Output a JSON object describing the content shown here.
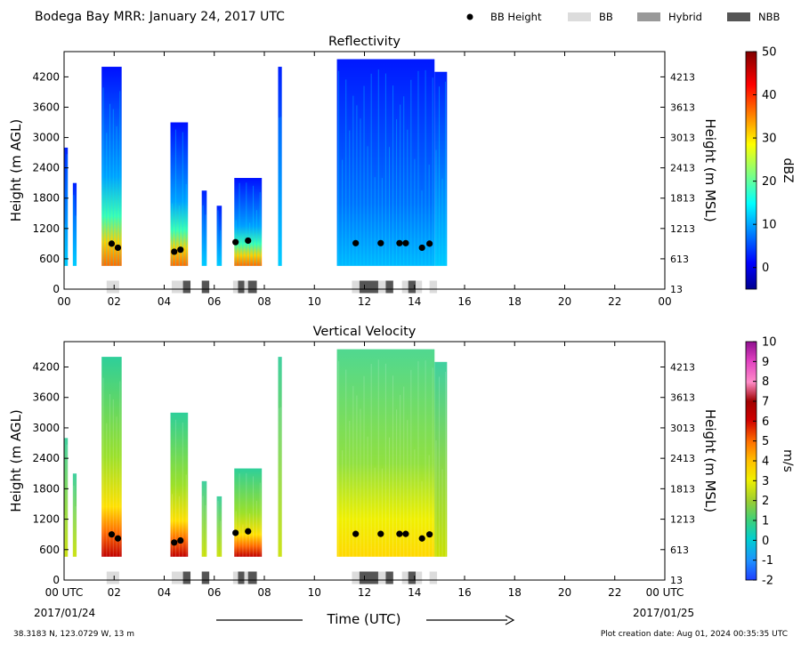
{
  "header": {
    "title": "Bodega Bay MRR:  January 24, 2017 UTC",
    "legend": [
      {
        "label": "BB Height",
        "kind": "dot",
        "color": "#000000"
      },
      {
        "label": "BB",
        "kind": "box",
        "color": "#dcdcdc"
      },
      {
        "label": "Hybrid",
        "kind": "box",
        "color": "#999999"
      },
      {
        "label": "NBB",
        "kind": "box",
        "color": "#555555"
      }
    ]
  },
  "footer": {
    "location": "38.3183 N, 123.0729 W, 13 m",
    "creation": "Plot creation date: Aug 01, 2024 00:35:35 UTC",
    "xlabel": "Time (UTC)",
    "start_date": "2017/01/24",
    "end_date": "2017/01/25"
  },
  "chart_data": [
    {
      "type": "heatmap",
      "title": "Reflectivity",
      "ylabel": "Height (m AGL)",
      "ylabel_right": "Height (m MSL)",
      "x_range": [
        0,
        24
      ],
      "y_range": [
        0,
        4700
      ],
      "xticks": [
        "00",
        "02",
        "04",
        "06",
        "08",
        "10",
        "12",
        "14",
        "16",
        "18",
        "20",
        "22",
        "00"
      ],
      "yticks_left": [
        {
          "v": 0,
          "t": "0"
        },
        {
          "v": 600,
          "t": "600"
        },
        {
          "v": 1200,
          "t": "1200"
        },
        {
          "v": 1800,
          "t": "1800"
        },
        {
          "v": 2400,
          "t": "2400"
        },
        {
          "v": 3000,
          "t": "3000"
        },
        {
          "v": 3600,
          "t": "3600"
        },
        {
          "v": 4200,
          "t": "4200"
        }
      ],
      "yticks_right": [
        "13",
        "613",
        "1213",
        "1813",
        "2413",
        "3013",
        "3613",
        "4213"
      ],
      "colorbar": {
        "label": "dBZ",
        "min": -5,
        "max": 50,
        "ticks": [
          "0",
          "10",
          "20",
          "30",
          "40",
          "50"
        ],
        "tick_values": [
          0,
          10,
          20,
          30,
          40,
          50
        ],
        "scheme": "jet"
      },
      "rain_episodes": [
        {
          "t0": 0.0,
          "t1": 0.15,
          "top": 2800,
          "core": 0
        },
        {
          "t0": 0.35,
          "t1": 0.5,
          "top": 2100,
          "core": 0
        },
        {
          "t0": 1.5,
          "t1": 2.3,
          "top": 4400,
          "core": 1
        },
        {
          "t0": 4.25,
          "t1": 4.95,
          "top": 3300,
          "core": 1
        },
        {
          "t0": 5.5,
          "t1": 5.7,
          "top": 1950,
          "core": 0
        },
        {
          "t0": 6.1,
          "t1": 6.3,
          "top": 1650,
          "core": 0
        },
        {
          "t0": 6.8,
          "t1": 7.9,
          "top": 2200,
          "core": 1
        },
        {
          "t0": 8.55,
          "t1": 8.7,
          "top": 4400,
          "core": 0
        },
        {
          "t0": 10.9,
          "t1": 14.8,
          "top": 4550,
          "core": 0
        },
        {
          "t0": 14.8,
          "t1": 15.3,
          "top": 4300,
          "core": 0
        }
      ],
      "bb_height": {
        "x": [
          1.9,
          2.15,
          4.4,
          4.65,
          6.85,
          7.35,
          11.65,
          12.65,
          13.4,
          13.65,
          14.3,
          14.6
        ],
        "y": [
          900,
          820,
          740,
          780,
          930,
          960,
          910,
          910,
          910,
          910,
          820,
          900
        ]
      },
      "bb_class": [
        {
          "t0": 1.7,
          "t1": 2.2,
          "class": "BB"
        },
        {
          "t0": 4.3,
          "t1": 4.75,
          "class": "BB"
        },
        {
          "t0": 4.75,
          "t1": 5.05,
          "class": "NBB"
        },
        {
          "t0": 5.5,
          "t1": 5.8,
          "class": "NBB"
        },
        {
          "t0": 6.75,
          "t1": 6.95,
          "class": "BB"
        },
        {
          "t0": 6.95,
          "t1": 7.2,
          "class": "NBB"
        },
        {
          "t0": 7.2,
          "t1": 7.35,
          "class": "BB"
        },
        {
          "t0": 7.35,
          "t1": 7.7,
          "class": "NBB"
        },
        {
          "t0": 11.5,
          "t1": 11.8,
          "class": "BB"
        },
        {
          "t0": 11.8,
          "t1": 12.55,
          "class": "NBB"
        },
        {
          "t0": 12.55,
          "t1": 12.85,
          "class": "BB"
        },
        {
          "t0": 12.85,
          "t1": 13.15,
          "class": "NBB"
        },
        {
          "t0": 13.5,
          "t1": 13.75,
          "class": "BB"
        },
        {
          "t0": 13.75,
          "t1": 14.05,
          "class": "NBB"
        },
        {
          "t0": 14.05,
          "t1": 14.3,
          "class": "BB"
        },
        {
          "t0": 14.6,
          "t1": 14.9,
          "class": "BB"
        }
      ]
    },
    {
      "type": "heatmap",
      "title": "Vertical Velocity",
      "ylabel": "Height (m AGL)",
      "ylabel_right": "Height (m MSL)",
      "x_range": [
        0,
        24
      ],
      "y_range": [
        0,
        4700
      ],
      "xticks": [
        "00 UTC",
        "02",
        "04",
        "06",
        "08",
        "10",
        "12",
        "14",
        "16",
        "18",
        "20",
        "22",
        "00 UTC"
      ],
      "yticks_left": [
        {
          "v": 0,
          "t": "0"
        },
        {
          "v": 600,
          "t": "600"
        },
        {
          "v": 1200,
          "t": "1200"
        },
        {
          "v": 1800,
          "t": "1800"
        },
        {
          "v": 2400,
          "t": "2400"
        },
        {
          "v": 3000,
          "t": "3000"
        },
        {
          "v": 3600,
          "t": "3600"
        },
        {
          "v": 4200,
          "t": "4200"
        }
      ],
      "yticks_right": [
        "13",
        "613",
        "1213",
        "1813",
        "2413",
        "3013",
        "3613",
        "4213"
      ],
      "colorbar": {
        "label": "m/s",
        "min": -2,
        "max": 10,
        "ticks": [
          "-2",
          "-1",
          "0",
          "1",
          "2",
          "3",
          "4",
          "5",
          "6",
          "7",
          "8",
          "9",
          "10"
        ],
        "tick_values": [
          -2,
          -1,
          0,
          1,
          2,
          3,
          4,
          5,
          6,
          7,
          8,
          9,
          10
        ],
        "scheme": "velocity"
      },
      "rain_episodes": [
        {
          "t0": 0.0,
          "t1": 0.15,
          "top": 2800,
          "core": 0
        },
        {
          "t0": 0.35,
          "t1": 0.5,
          "top": 2100,
          "core": 0
        },
        {
          "t0": 1.5,
          "t1": 2.3,
          "top": 4400,
          "core": 1
        },
        {
          "t0": 4.25,
          "t1": 4.95,
          "top": 3300,
          "core": 1
        },
        {
          "t0": 5.5,
          "t1": 5.7,
          "top": 1950,
          "core": 0
        },
        {
          "t0": 6.1,
          "t1": 6.3,
          "top": 1650,
          "core": 0
        },
        {
          "t0": 6.8,
          "t1": 7.9,
          "top": 2200,
          "core": 1
        },
        {
          "t0": 8.55,
          "t1": 8.7,
          "top": 4400,
          "core": 0
        },
        {
          "t0": 10.9,
          "t1": 14.8,
          "top": 4550,
          "core": 0
        },
        {
          "t0": 14.8,
          "t1": 15.3,
          "top": 4300,
          "core": 0
        }
      ],
      "bb_height": {
        "x": [
          1.9,
          2.15,
          4.4,
          4.65,
          6.85,
          7.35,
          11.65,
          12.65,
          13.4,
          13.65,
          14.3,
          14.6
        ],
        "y": [
          900,
          820,
          740,
          780,
          930,
          960,
          910,
          910,
          910,
          910,
          820,
          900
        ]
      },
      "bb_class": [
        {
          "t0": 1.7,
          "t1": 2.2,
          "class": "BB"
        },
        {
          "t0": 4.3,
          "t1": 4.75,
          "class": "BB"
        },
        {
          "t0": 4.75,
          "t1": 5.05,
          "class": "NBB"
        },
        {
          "t0": 5.5,
          "t1": 5.8,
          "class": "NBB"
        },
        {
          "t0": 6.75,
          "t1": 6.95,
          "class": "BB"
        },
        {
          "t0": 6.95,
          "t1": 7.2,
          "class": "NBB"
        },
        {
          "t0": 7.2,
          "t1": 7.35,
          "class": "BB"
        },
        {
          "t0": 7.35,
          "t1": 7.7,
          "class": "NBB"
        },
        {
          "t0": 11.5,
          "t1": 11.8,
          "class": "BB"
        },
        {
          "t0": 11.8,
          "t1": 12.55,
          "class": "NBB"
        },
        {
          "t0": 12.55,
          "t1": 12.85,
          "class": "BB"
        },
        {
          "t0": 12.85,
          "t1": 13.15,
          "class": "NBB"
        },
        {
          "t0": 13.5,
          "t1": 13.75,
          "class": "BB"
        },
        {
          "t0": 13.75,
          "t1": 14.05,
          "class": "NBB"
        },
        {
          "t0": 14.05,
          "t1": 14.3,
          "class": "BB"
        },
        {
          "t0": 14.6,
          "t1": 14.9,
          "class": "BB"
        }
      ]
    }
  ]
}
